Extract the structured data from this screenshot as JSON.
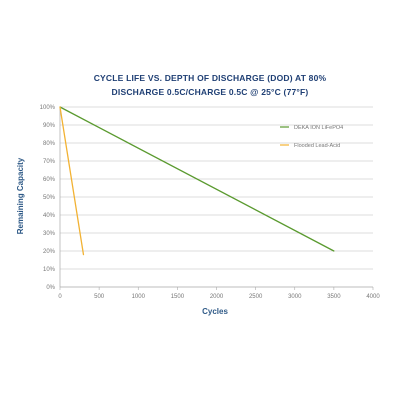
{
  "chart_data": {
    "type": "line",
    "title_lines": [
      "CYCLE LIFE VS. DEPTH OF DISCHARGE (DOD) AT 80%",
      "DISCHARGE 0.5C/CHARGE 0.5C @ 25°C (77°F)"
    ],
    "xlabel": "Cycles",
    "ylabel": "Remaining Capacity",
    "xlim": [
      0,
      4000
    ],
    "ylim": [
      0,
      100
    ],
    "x_ticks": [
      0,
      500,
      1000,
      1500,
      2000,
      2500,
      3000,
      3500,
      4000
    ],
    "x_tick_labels": [
      "0",
      "500",
      "1000",
      "1500",
      "2000",
      "2500",
      "3000",
      "3500",
      "4000"
    ],
    "y_ticks": [
      0,
      10,
      20,
      30,
      40,
      50,
      60,
      70,
      80,
      90,
      100
    ],
    "y_tick_labels": [
      "0%",
      "10%",
      "20%",
      "30%",
      "40%",
      "50%",
      "60%",
      "70%",
      "80%",
      "90%",
      "100%"
    ],
    "grid": "horizontal",
    "legend_position": "right",
    "series": [
      {
        "name": "DEKA ION LiFePO4",
        "color": "#5a9a2f",
        "x": [
          0,
          3500
        ],
        "y": [
          100,
          20
        ]
      },
      {
        "name": "Flooded Lead-Acid",
        "color": "#f2b233",
        "x": [
          0,
          300
        ],
        "y": [
          100,
          18
        ]
      }
    ]
  }
}
